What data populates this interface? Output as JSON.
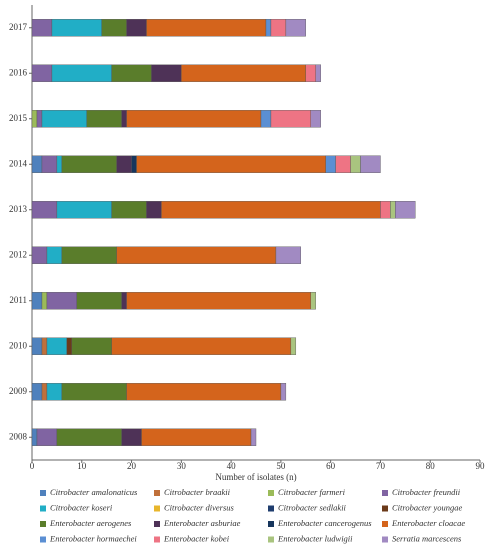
{
  "chart_data": {
    "type": "stacked_barh",
    "x_label": "Number of isolates (n)",
    "categories": [
      "2017",
      "2016",
      "2015",
      "2014",
      "2013",
      "2012",
      "2011",
      "2010",
      "2009",
      "2008"
    ],
    "xlim": [
      0,
      90
    ],
    "xticks": [
      0,
      10,
      20,
      30,
      40,
      50,
      60,
      70,
      80,
      90
    ],
    "series": [
      {
        "name": "Citrobacter amalonaticus",
        "color": "#4f81bd",
        "values": [
          0,
          0,
          0,
          2,
          0,
          0,
          2,
          2,
          2,
          1
        ]
      },
      {
        "name": "Citrobacter braakii",
        "color": "#c0703a",
        "values": [
          0,
          0,
          0,
          0,
          0,
          0,
          0,
          1,
          1,
          0
        ]
      },
      {
        "name": "Citrobacter farmeri",
        "color": "#9bbb59",
        "values": [
          0,
          0,
          1,
          0,
          0,
          0,
          1,
          0,
          0,
          0
        ]
      },
      {
        "name": "Citrobacter freundii",
        "color": "#8064a2",
        "values": [
          4,
          4,
          1,
          3,
          5,
          3,
          6,
          0,
          0,
          4
        ]
      },
      {
        "name": "Citrobacter koseri",
        "color": "#21aec6",
        "values": [
          10,
          12,
          9,
          1,
          11,
          3,
          0,
          4,
          3,
          0
        ]
      },
      {
        "name": "Citrobacter diversus",
        "color": "#e8b62c",
        "values": [
          0,
          0,
          0,
          0,
          0,
          0,
          0,
          0,
          0,
          0
        ]
      },
      {
        "name": "Citrobacter sedlakii",
        "color": "#1f3d6e",
        "values": [
          0,
          0,
          0,
          0,
          0,
          0,
          0,
          0,
          0,
          0
        ]
      },
      {
        "name": "Citrobacter youngae",
        "color": "#6b3a1a",
        "values": [
          0,
          0,
          0,
          0,
          0,
          0,
          0,
          1,
          0,
          0
        ]
      },
      {
        "name": "Enterobacter aerogenes",
        "color": "#5a7d2b",
        "values": [
          5,
          8,
          7,
          11,
          7,
          11,
          9,
          8,
          13,
          13
        ]
      },
      {
        "name": "Enterobacter asburiae",
        "color": "#4e3257",
        "values": [
          4,
          6,
          1,
          3,
          3,
          0,
          1,
          0,
          0,
          4
        ]
      },
      {
        "name": "Enterobacter cancerogenus",
        "color": "#17365d",
        "values": [
          0,
          0,
          0,
          1,
          0,
          0,
          0,
          0,
          0,
          0
        ]
      },
      {
        "name": "Enterobacter cloacae",
        "color": "#d4641c",
        "values": [
          24,
          25,
          27,
          38,
          44,
          32,
          37,
          36,
          31,
          22
        ]
      },
      {
        "name": "Enterobacter hormaechei",
        "color": "#5b8fd3",
        "values": [
          1,
          0,
          2,
          2,
          0,
          0,
          0,
          0,
          0,
          0
        ]
      },
      {
        "name": "Enterobacter kobei",
        "color": "#ee7484",
        "values": [
          3,
          2,
          8,
          3,
          2,
          0,
          0,
          0,
          0,
          0
        ]
      },
      {
        "name": "Enterobacter ludwigii",
        "color": "#a9c47f",
        "values": [
          0,
          0,
          0,
          2,
          1,
          0,
          1,
          1,
          0,
          0
        ]
      },
      {
        "name": "Serratia marcescens",
        "color": "#a18ac2",
        "values": [
          4,
          1,
          2,
          4,
          4,
          5,
          0,
          0,
          1,
          1
        ]
      }
    ]
  }
}
